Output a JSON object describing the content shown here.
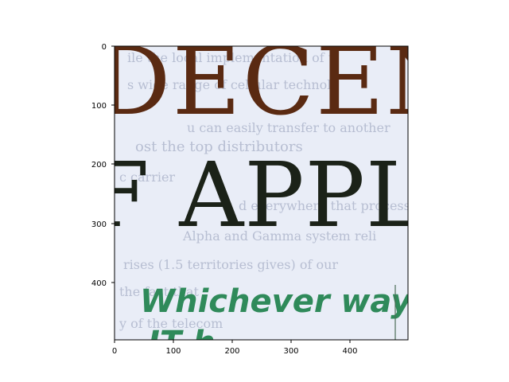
{
  "image": {
    "axes": {
      "x_ticks": [
        "0",
        "100",
        "200",
        "300",
        "400"
      ],
      "y_ticks": [
        "0",
        "100",
        "200",
        "300",
        "400"
      ]
    },
    "scan": {
      "heading_top": "DECEN",
      "heading_bottom": "F APPLI",
      "green_line": "Whichever way",
      "green_line_cut": "IT h",
      "faint_text": [
        "ile the local implementation of t",
        "s wide range of cellular technolo",
        "u can easily transfer to another",
        "ost the top distributors",
        "c carrier",
        "d everywhere that processing",
        "Alpha and Gamma system reli",
        "rises (1.5 territories gives) of our",
        "the fact that",
        "y of the telecom"
      ]
    },
    "colors": {
      "paper": "#e9edf7",
      "brown_heading": "#5a2a12",
      "dark_heading": "#1b2218",
      "green_text": "#2f8a5a",
      "faint_text": "#b7bed2"
    }
  }
}
